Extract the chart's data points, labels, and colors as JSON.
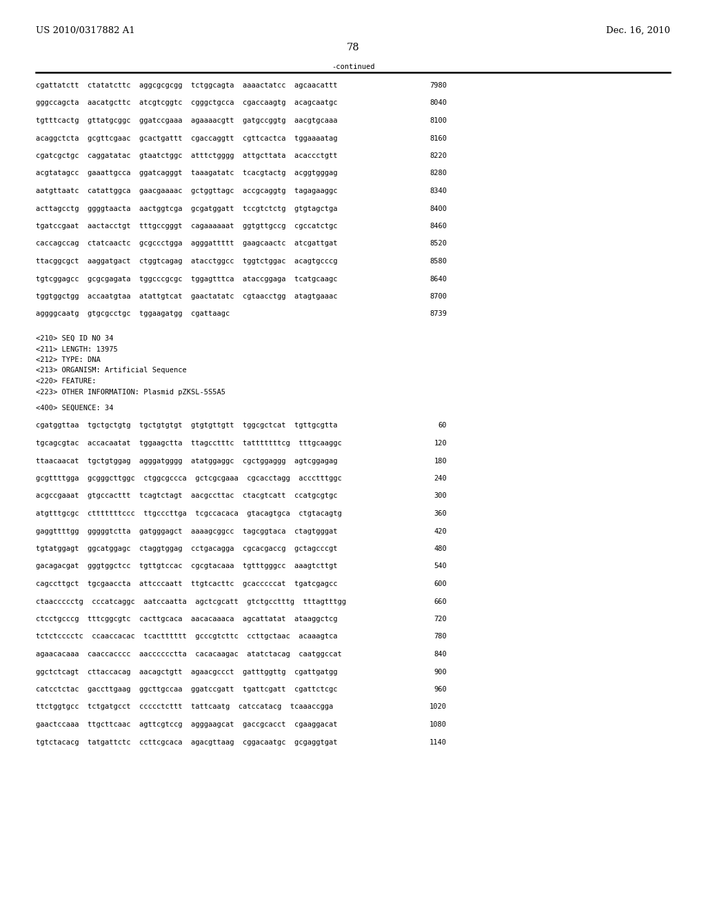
{
  "header_left": "US 2010/0317882 A1",
  "header_right": "Dec. 16, 2010",
  "page_number": "78",
  "continued_label": "-continued",
  "background_color": "#ffffff",
  "text_color": "#000000",
  "continued_section": [
    {
      "seq": "cgattatctt  ctatatcttc  aggcgcgcgg  tctggcagta  aaaactatcc  agcaacattt",
      "num": "7980"
    },
    {
      "seq": "gggccagcta  aacatgcttc  atcgtcggtc  cgggctgcca  cgaccaagtg  acagcaatgc",
      "num": "8040"
    },
    {
      "seq": "tgtttcactg  gttatgcggc  ggatccgaaa  agaaaacgtt  gatgccggtg  aacgtgcaaa",
      "num": "8100"
    },
    {
      "seq": "acaggctcta  gcgttcgaac  gcactgattt  cgaccaggtt  cgttcactca  tggaaaatag",
      "num": "8160"
    },
    {
      "seq": "cgatcgctgc  caggatatac  gtaatctggc  atttctgggg  attgcttata  acaccctgtt",
      "num": "8220"
    },
    {
      "seq": "acgtatagcc  gaaattgcca  ggatcagggt  taaagatatc  tcacgtactg  acggtgggag",
      "num": "8280"
    },
    {
      "seq": "aatgttaatc  catattggca  gaacgaaaac  gctggttagc  accgcaggtg  tagagaaggc",
      "num": "8340"
    },
    {
      "seq": "acttagcctg  ggggtaacta  aactggtcga  gcgatggatt  tccgtctctg  gtgtagctga",
      "num": "8400"
    },
    {
      "seq": "tgatccgaat  aactacctgt  tttgccgggt  cagaaaaaat  ggtgttgccg  cgccatctgc",
      "num": "8460"
    },
    {
      "seq": "caccagccag  ctatcaactc  gcgccctgga  agggattttt  gaagcaactc  atcgattgat",
      "num": "8520"
    },
    {
      "seq": "ttacggcgct  aaggatgact  ctggtcagag  atacctggcc  tggtctggac  acagtgcccg",
      "num": "8580"
    },
    {
      "seq": "tgtcggagcc  gcgcgagata  tggcccgcgc  tggagtttca  ataccggaga  tcatgcaagc",
      "num": "8640"
    },
    {
      "seq": "tggtggctgg  accaatgtaa  atattgtcat  gaactatatc  cgtaacctgg  atagtgaaac",
      "num": "8700"
    },
    {
      "seq": "aggggcaatg  gtgcgcctgc  tggaagatgg  cgattaagc",
      "num": "8739"
    }
  ],
  "metadata_section": [
    "<210> SEQ ID NO 34",
    "<211> LENGTH: 13975",
    "<212> TYPE: DNA",
    "<213> ORGANISM: Artificial Sequence",
    "<220> FEATURE:",
    "<223> OTHER INFORMATION: Plasmid pZKSL-5S5A5"
  ],
  "sequence_label": "<400> SEQUENCE: 34",
  "sequence_section": [
    {
      "seq": "cgatggttaa  tgctgctgtg  tgctgtgtgt  gtgtgttgtt  tggcgctcat  tgttgcgtta",
      "num": "60"
    },
    {
      "seq": "tgcagcgtac  accacaatat  tggaagctta  ttagcctttc  tatttttttcg  tttgcaaggc",
      "num": "120"
    },
    {
      "seq": "ttaacaacat  tgctgtggag  agggatgggg  atatggaggc  cgctggaggg  agtcggagag",
      "num": "180"
    },
    {
      "seq": "gcgttttgga  gcgggcttggc  ctggcgccca  gctcgcgaaa  cgcacctagg  accctttggc",
      "num": "240"
    },
    {
      "seq": "acgccgaaat  gtgccacttt  tcagtctagt  aacgccttac  ctacgtcatt  ccatgcgtgc",
      "num": "300"
    },
    {
      "seq": "atgtttgcgc  ctttttttccc  ttgcccttga  tcgccacaca  gtacagtgca  ctgtacagtg",
      "num": "360"
    },
    {
      "seq": "gaggttttgg  gggggtctta  gatgggagct  aaaagcggcc  tagcggtaca  ctagtgggat",
      "num": "420"
    },
    {
      "seq": "tgtatggagt  ggcatggagc  ctaggtggag  cctgacagga  cgcacgaccg  gctagcccgt",
      "num": "480"
    },
    {
      "seq": "gacagacgat  gggtggctcc  tgttgtccac  cgcgtacaaa  tgtttgggcc  aaagtcttgt",
      "num": "540"
    },
    {
      "seq": "cagccttgct  tgcgaaccta  attcccaatt  ttgtcacttc  gcacccccat  tgatcgagcc",
      "num": "600"
    },
    {
      "seq": "ctaaccccctg  cccatcaggc  aatccaatta  agctcgcatt  gtctgcctttg  tttagtttgg",
      "num": "660"
    },
    {
      "seq": "ctcctgcccg  tttcggcgtc  cacttgcaca  aacacaaaca  agcattatat  ataaggctcg",
      "num": "720"
    },
    {
      "seq": "tctctcccctc  ccaaccacac  tcactttttt  gcccgtcttc  ccttgctaac  acaaagtca",
      "num": "780"
    },
    {
      "seq": "agaacacaaa  caaccacccc  aacccccctta  cacacaagac  atatctacag  caatggccat",
      "num": "840"
    },
    {
      "seq": "ggctctcagt  cttaccacag  aacagctgtt  agaacgccct  gatttggttg  cgattgatgg",
      "num": "900"
    },
    {
      "seq": "catcctctac  gaccttgaag  ggcttgccaa  ggatccgatt  tgattcgatt  cgattctcgc",
      "num": "960"
    },
    {
      "seq": "ttctggtgcc  tctgatgcct  ccccctcttt  tattcaatg  catccatacg  tcaaaccgga",
      "num": "1020"
    },
    {
      "seq": "gaactccaaa  ttgcttcaac  agttcgtccg  agggaagcat  gaccgcacct  cgaaggacat",
      "num": "1080"
    },
    {
      "seq": "tgtctacacg  tatgattctc  ccttcgcaca  agacgttaag  cggacaatgc  gcgaggtgat",
      "num": "1140"
    }
  ]
}
